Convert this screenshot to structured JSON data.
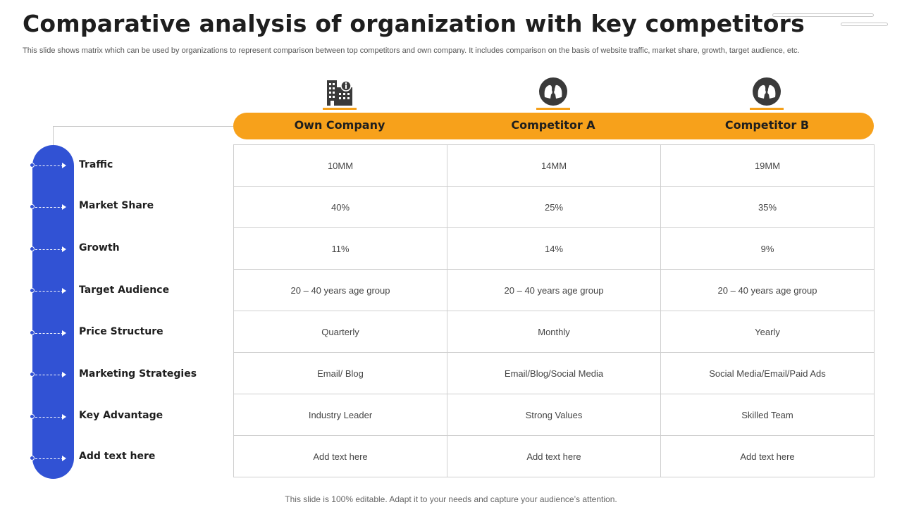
{
  "title": "Comparative analysis of organization with key competitors",
  "subtitle": "This slide shows matrix which can be used by organizations to represent comparison between top competitors and own company. It includes comparison on the basis of website traffic, market share, growth, target audience, etc.",
  "columns": [
    {
      "label": "Own Company",
      "icon": "building-icon"
    },
    {
      "label": "Competitor A",
      "icon": "competitor-heads-icon"
    },
    {
      "label": "Competitor B",
      "icon": "competitor-heads-icon"
    }
  ],
  "rows": [
    {
      "label": "Traffic",
      "values": [
        "10MM",
        "14MM",
        "19MM"
      ]
    },
    {
      "label": "Market Share",
      "values": [
        "40%",
        "25%",
        "35%"
      ]
    },
    {
      "label": "Growth",
      "values": [
        "11%",
        "14%",
        "9%"
      ]
    },
    {
      "label": "Target Audience",
      "values": [
        "20 – 40 years age group",
        "20 – 40 years age group",
        "20 – 40 years age group"
      ]
    },
    {
      "label": "Price Structure",
      "values": [
        "Quarterly",
        "Monthly",
        "Yearly"
      ]
    },
    {
      "label": "Marketing Strategies",
      "values": [
        "Email/ Blog",
        "Email/Blog/Social Media",
        "Social Media/Email/Paid Ads"
      ]
    },
    {
      "label": "Key Advantage",
      "values": [
        "Industry Leader",
        "Strong Values",
        "Skilled Team"
      ]
    },
    {
      "label": "Add text here",
      "values": [
        "Add text here",
        "Add text here",
        "Add text here"
      ]
    }
  ],
  "footer": "This slide is 100% editable. Adapt it to your needs and capture your audience’s attention.",
  "colors": {
    "accent_orange": "#f7a11b",
    "accent_blue": "#3152d4",
    "icon_dark": "#3a3a3a"
  }
}
